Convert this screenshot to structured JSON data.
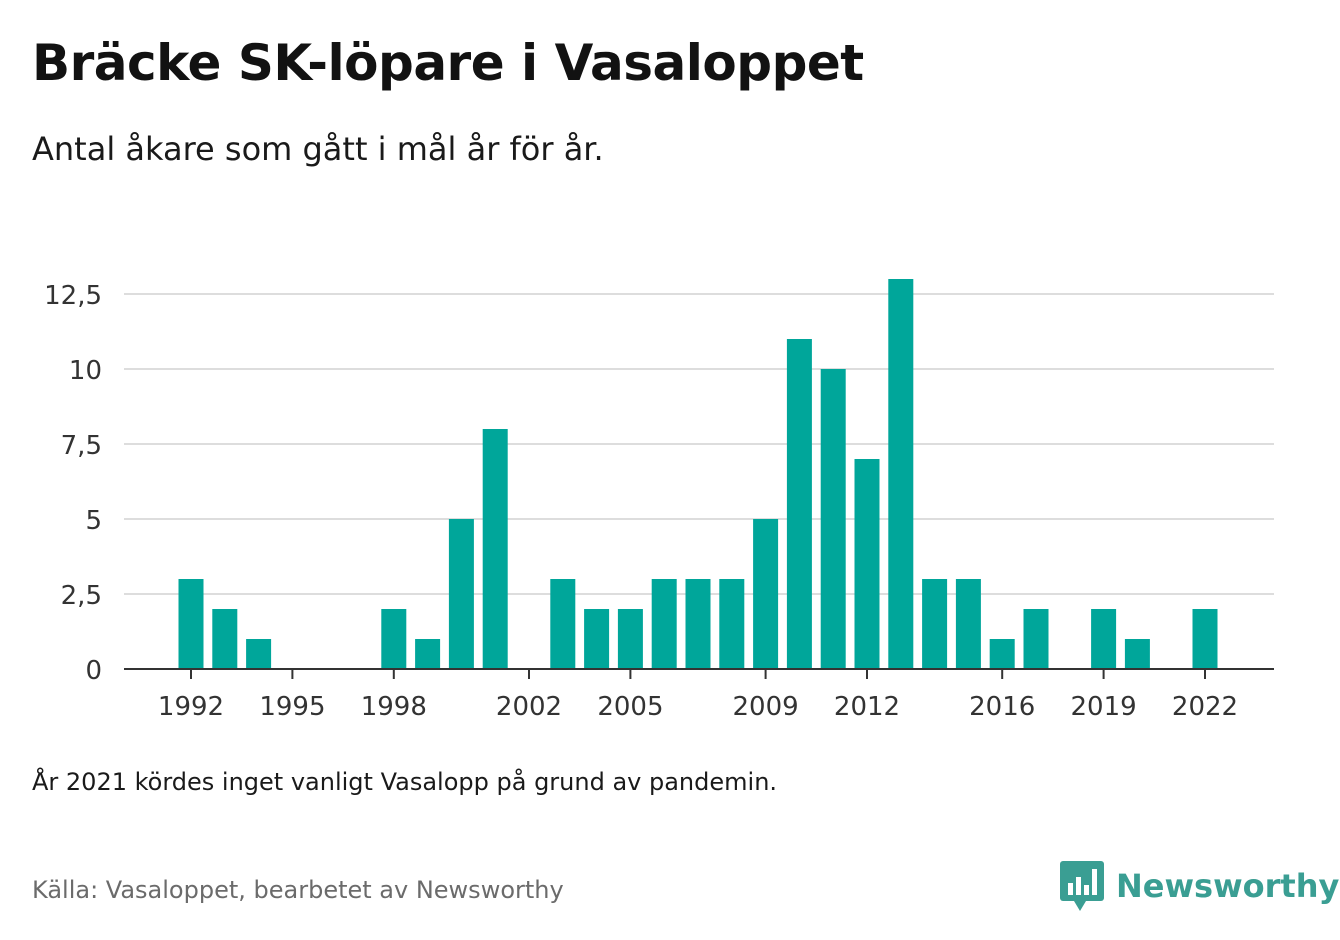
{
  "title": "Bräcke SK-löpare i Vasaloppet",
  "subtitle": "Antal åkare som gått i mål år för år.",
  "note": "År 2021 kördes inget vanligt Vasalopp på grund av pandemin.",
  "source": "Källa: Vasaloppet, bearbetet av Newsworthy",
  "brand": "Newsworthy",
  "colors": {
    "bar": "#00a69a",
    "grid": "#dddddd",
    "axis": "#333333",
    "brand": "#3a9e93"
  },
  "chart_data": {
    "type": "bar",
    "x": [
      1992,
      1993,
      1994,
      1995,
      1996,
      1997,
      1998,
      1999,
      2000,
      2001,
      2002,
      2003,
      2004,
      2005,
      2006,
      2007,
      2008,
      2009,
      2010,
      2011,
      2012,
      2013,
      2014,
      2015,
      2016,
      2017,
      2018,
      2019,
      2020,
      2021,
      2022
    ],
    "values": [
      3,
      2,
      1,
      0,
      0,
      0,
      2,
      1,
      5,
      8,
      0,
      3,
      2,
      2,
      3,
      3,
      3,
      5,
      11,
      10,
      7,
      13,
      3,
      3,
      1,
      2,
      0,
      2,
      1,
      0,
      2
    ],
    "ylim": [
      0,
      13
    ],
    "y_ticks": [
      0,
      2.5,
      5,
      7.5,
      10,
      12.5
    ],
    "y_tick_labels": [
      "0",
      "2,5",
      "5",
      "7,5",
      "10",
      "12,5"
    ],
    "x_tick_labels": [
      "1992",
      "1995",
      "1998",
      "2002",
      "2005",
      "2009",
      "2012",
      "2016",
      "2019",
      "2022"
    ],
    "xlabel": "",
    "ylabel": "",
    "grid": true,
    "legend": false
  }
}
